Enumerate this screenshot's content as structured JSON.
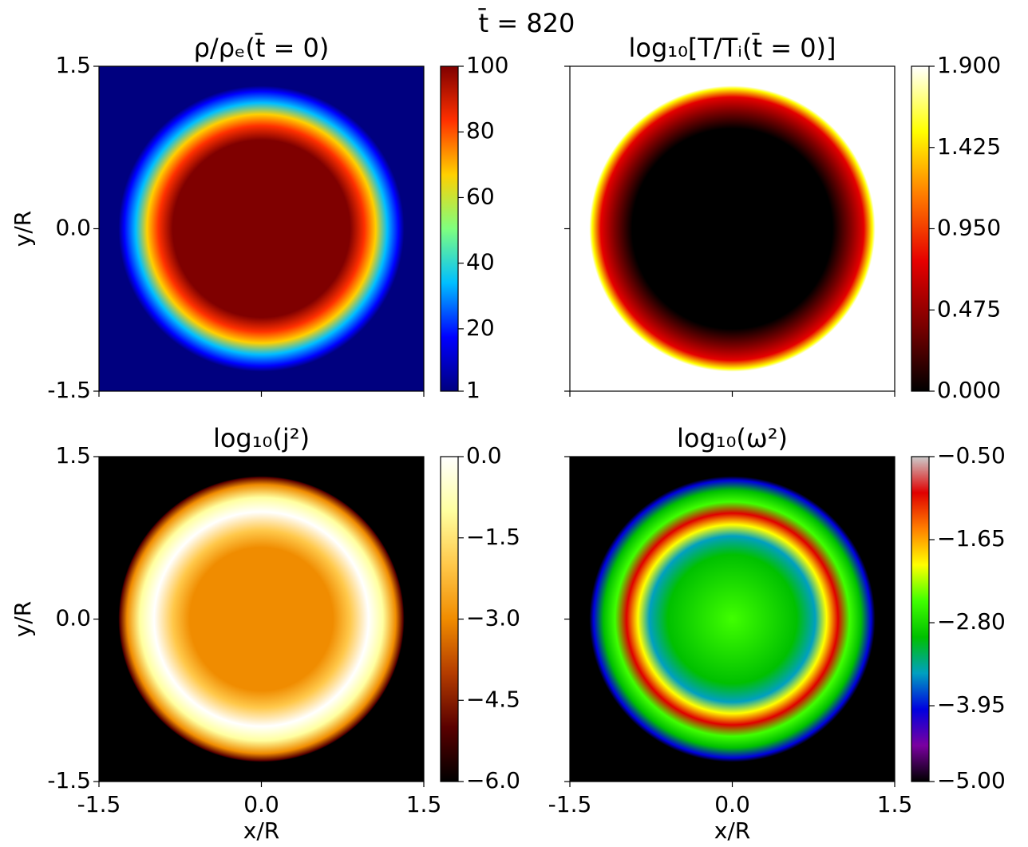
{
  "title": "t̄ = 820",
  "chart_data": [
    {
      "type": "heatmap",
      "title": "ρ/ρₑ(t̄ = 0)",
      "ylabel": "y/R",
      "xlim": [
        -1.5,
        1.5
      ],
      "ylim": [
        -1.5,
        1.5
      ],
      "xticks": [
        -1.5,
        0,
        1.5
      ],
      "show_xticklabels": false,
      "yticks": [
        -1.5,
        {
          "value": 0,
          "label": "0.0"
        },
        1.5
      ],
      "show_yticklabels": true,
      "colorbar": {
        "lim": [
          1,
          100
        ],
        "ticks": [
          1,
          20,
          40,
          60,
          80,
          100
        ],
        "colors": [
          "#00007f",
          "#0000ff",
          "#00bfff",
          "#7fff7f",
          "#ffd000",
          "#ff3000",
          "#7f0000"
        ]
      }
    },
    {
      "type": "heatmap",
      "title": "log₁₀[T/Tᵢ(t̄ = 0)]",
      "xlim": [
        -1.5,
        1.5
      ],
      "ylim": [
        -1.5,
        1.5
      ],
      "xticks": [
        -1.5,
        0,
        1.5
      ],
      "show_xticklabels": false,
      "yticks": [
        -1.5,
        0,
        1.5
      ],
      "show_yticklabels": false,
      "colorbar": {
        "lim": [
          0,
          1.9
        ],
        "ticks": [
          {
            "value": 0,
            "label": "0.000"
          },
          0.475,
          {
            "value": 0.95,
            "label": "0.950"
          },
          1.425,
          {
            "value": 1.9,
            "label": "1.900"
          }
        ],
        "colors": [
          "#000000",
          "#7a0000",
          "#e60000",
          "#ff7a00",
          "#ffff00",
          "#ffffff"
        ]
      }
    },
    {
      "type": "heatmap",
      "title": "log₁₀(j²)",
      "xlabel": "x/R",
      "ylabel": "y/R",
      "xlim": [
        -1.5,
        1.5
      ],
      "ylim": [
        -1.5,
        1.5
      ],
      "xticks": [
        -1.5,
        {
          "value": 0,
          "label": "0.0"
        },
        1.5
      ],
      "show_xticklabels": true,
      "yticks": [
        -1.5,
        {
          "value": 0,
          "label": "0.0"
        },
        1.5
      ],
      "show_yticklabels": true,
      "colorbar": {
        "lim": [
          -6,
          0
        ],
        "ticks": [
          {
            "value": -6,
            "label": "−6.0"
          },
          {
            "value": -4.5,
            "label": "−4.5"
          },
          {
            "value": -3,
            "label": "−3.0"
          },
          {
            "value": -1.5,
            "label": "−1.5"
          },
          {
            "value": 0,
            "label": "0.0"
          }
        ],
        "colors": [
          "#000000",
          "#5a0000",
          "#b43c00",
          "#f08c00",
          "#ffc84a",
          "#ffffa0",
          "#ffffff"
        ]
      }
    },
    {
      "type": "heatmap",
      "title": "log₁₀(ω²)",
      "xlabel": "x/R",
      "xlim": [
        -1.5,
        1.5
      ],
      "ylim": [
        -1.5,
        1.5
      ],
      "xticks": [
        -1.5,
        {
          "value": 0,
          "label": "0.0"
        },
        1.5
      ],
      "show_xticklabels": true,
      "yticks": [
        -1.5,
        0,
        1.5
      ],
      "show_yticklabels": false,
      "colorbar": {
        "lim": [
          -5,
          -0.5
        ],
        "ticks": [
          {
            "value": -5,
            "label": "−5.00"
          },
          {
            "value": -3.95,
            "label": "−3.95"
          },
          {
            "value": -2.8,
            "label": "−2.80"
          },
          {
            "value": -1.65,
            "label": "−1.65"
          },
          {
            "value": -0.5,
            "label": "−0.50"
          }
        ],
        "colors": [
          "#000000",
          "#7a00a0",
          "#0000e0",
          "#00a0c0",
          "#00c000",
          "#40ff00",
          "#ffff00",
          "#ff8000",
          "#e00000",
          "#cccccc"
        ]
      }
    }
  ]
}
